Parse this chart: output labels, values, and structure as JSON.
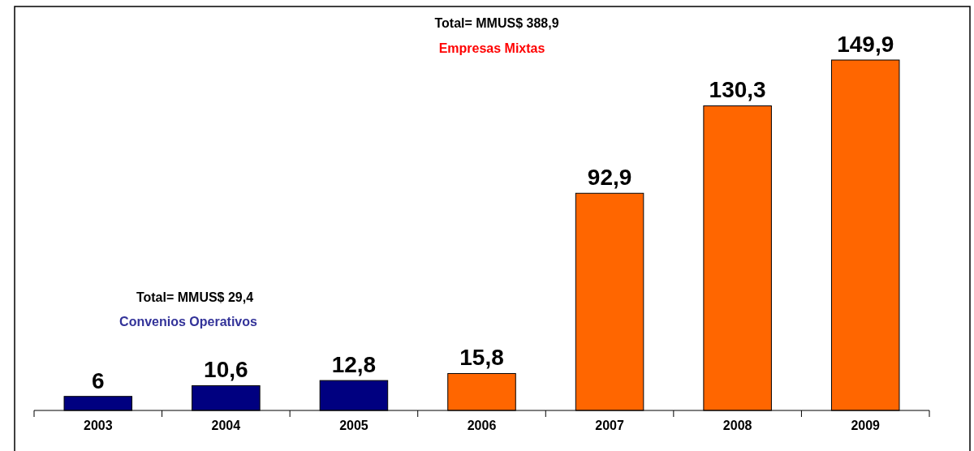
{
  "chart_data": {
    "type": "bar",
    "categories": [
      "2003",
      "2004",
      "2005",
      "2006",
      "2007",
      "2008",
      "2009"
    ],
    "values": [
      6,
      10.6,
      12.8,
      15.8,
      92.9,
      130.3,
      149.9
    ],
    "colors": [
      "#000080",
      "#000080",
      "#000080",
      "#ff6600",
      "#ff6600",
      "#ff6600",
      "#ff6600"
    ],
    "value_labels": [
      "6",
      "10,6",
      "12,8",
      "15,8",
      "92,9",
      "130,3",
      "149,9"
    ],
    "annotations": [
      "Total= MMUS$ 388,9",
      "Empresas Mixtas",
      "Total= MMUS$ 29,4",
      "Convenios Operativos"
    ],
    "legend": false
  }
}
